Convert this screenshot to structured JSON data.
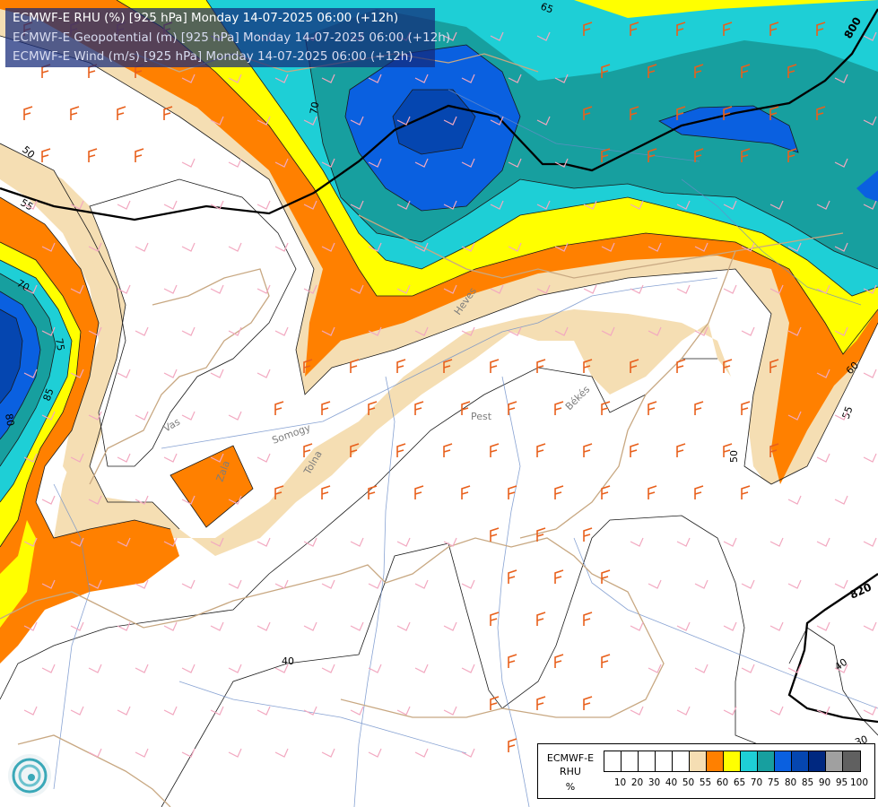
{
  "header": {
    "line1": "ECMWF-E RHU (%) [925 hPa] Monday 14-07-2025 06:00 (+12h)",
    "line2": "ECMWF-E Geopotential (m) [925 hPa] Monday 14-07-2025 06:00 (+12h)",
    "line3": "ECMWF-E Wind (m/s) [925 hPa] Monday 14-07-2025 06:00 (+12h)"
  },
  "legend": {
    "title1": "ECMWF-E",
    "title2": "RHU",
    "title3": "%",
    "ticks": [
      "10",
      "20",
      "30",
      "40",
      "50",
      "55",
      "60",
      "65",
      "70",
      "75",
      "80",
      "85",
      "90",
      "95",
      "100"
    ],
    "colors": [
      "#ffffff",
      "#ffffff",
      "#ffffff",
      "#ffffff",
      "#ffffff",
      "#f5deb3",
      "#ff8000",
      "#ffff00",
      "#1ecfd6",
      "#179f9f",
      "#0a60e0",
      "#0546b0",
      "#002880",
      "#a0a0a0",
      "#606060"
    ]
  },
  "contour_labels": {
    "rhu": [
      "65",
      "70",
      "50",
      "55",
      "70",
      "75",
      "80",
      "85",
      "55",
      "60",
      "50",
      "40",
      "40",
      "30"
    ],
    "geopotential": [
      "800",
      "820"
    ]
  },
  "place_labels": [
    "Vas",
    "Somogy",
    "Tolna",
    "Zala",
    "Pest",
    "Békés",
    "Heves"
  ],
  "logo_icon": "ecmwf-logo-icon"
}
